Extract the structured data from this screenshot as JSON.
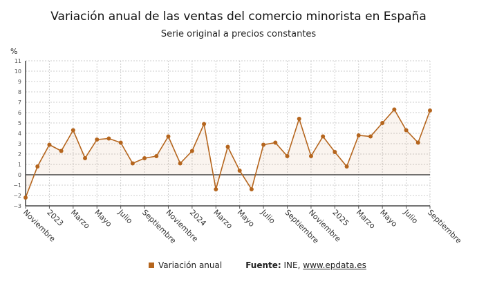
{
  "chart_data": {
    "type": "area",
    "title": "Variación anual de las ventas del comercio minorista en España",
    "subtitle": "Serie original a precios constantes",
    "ylabel": "%",
    "ylim": [
      -3,
      11
    ],
    "yticks": [
      -3,
      -2,
      -1,
      0,
      1,
      2,
      3,
      4,
      5,
      6,
      7,
      8,
      9,
      10,
      11
    ],
    "grid": true,
    "legend_position": "bottom",
    "color": "#b5651d",
    "x": [
      "2022-11",
      "2022-12",
      "2023-01",
      "2023-02",
      "2023-03",
      "2023-04",
      "2023-05",
      "2023-06",
      "2023-07",
      "2023-08",
      "2023-09",
      "2023-10",
      "2023-11",
      "2023-12",
      "2024-01",
      "2024-02",
      "2024-03",
      "2024-04",
      "2024-05",
      "2024-06",
      "2024-07",
      "2024-08",
      "2024-09",
      "2024-10",
      "2024-11",
      "2024-12",
      "2025-01",
      "2025-02",
      "2025-03",
      "2025-04",
      "2025-05",
      "2025-06",
      "2025-07",
      "2025-08",
      "2025-09"
    ],
    "xtick_labels": [
      "Noviembre",
      "2023",
      "Marzo",
      "Mayo",
      "Julio",
      "Septiembre",
      "Noviembre",
      "2024",
      "Marzo",
      "Mayo",
      "Julio",
      "Septiembre",
      "Noviembre",
      "2025",
      "Marzo",
      "Mayo",
      "Julio",
      "Septiembre"
    ],
    "series": [
      {
        "name": "Variación anual",
        "values": [
          -2.2,
          0.8,
          2.9,
          2.3,
          4.3,
          1.6,
          3.4,
          3.5,
          3.1,
          1.1,
          1.6,
          1.8,
          3.7,
          1.1,
          2.3,
          4.9,
          -1.4,
          2.7,
          0.4,
          -1.4,
          2.9,
          3.1,
          1.8,
          5.4,
          1.8,
          3.7,
          2.2,
          0.8,
          3.8,
          3.7,
          5.0,
          6.3,
          4.3,
          3.1,
          6.2
        ]
      }
    ]
  },
  "source": {
    "label": "Fuente:",
    "text": " INE, ",
    "link": "www.epdata.es"
  }
}
